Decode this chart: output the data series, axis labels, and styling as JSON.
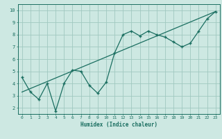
{
  "xlabel": "Humidex (Indice chaleur)",
  "bg_color": "#cde8e2",
  "grid_color": "#a0c8c0",
  "line_color": "#1a6e60",
  "xlim": [
    -0.5,
    23.5
  ],
  "ylim": [
    1.5,
    10.5
  ],
  "xticks": [
    0,
    1,
    2,
    3,
    4,
    5,
    6,
    7,
    8,
    9,
    10,
    11,
    12,
    13,
    14,
    15,
    16,
    17,
    18,
    19,
    20,
    21,
    22,
    23
  ],
  "yticks": [
    2,
    3,
    4,
    5,
    6,
    7,
    8,
    9,
    10
  ],
  "data_x": [
    0,
    1,
    2,
    3,
    4,
    5,
    6,
    7,
    8,
    9,
    10,
    11,
    12,
    13,
    14,
    15,
    16,
    17,
    18,
    19,
    20,
    21,
    22,
    23
  ],
  "data_y": [
    4.5,
    3.3,
    2.7,
    4.0,
    1.75,
    4.0,
    5.1,
    5.0,
    3.85,
    3.2,
    4.1,
    6.5,
    8.0,
    8.3,
    7.9,
    8.3,
    8.0,
    7.8,
    7.4,
    7.0,
    7.3,
    8.3,
    9.3,
    9.9
  ],
  "trend_x": [
    0,
    23
  ],
  "trend_y": [
    3.3,
    9.9
  ]
}
